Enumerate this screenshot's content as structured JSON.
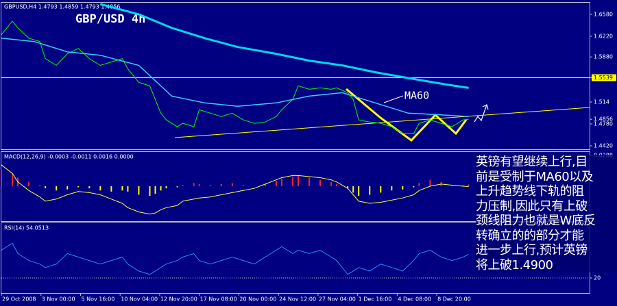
{
  "chart_data": [
    {
      "type": "line",
      "header": "GBPUSD,H4  1.4793 1.4859 1.4793 1.4856",
      "title": "GBP/USD 4h",
      "annotation": "MA60",
      "commentary": [
        "英镑有望继续上行,目",
        "前是受制于MA60以及",
        "上升趋势线下轨的阻",
        "力压制,因此只有上破",
        "颈线阻力也就是W底反",
        "转确立的的部分才能",
        "进一步上行,预计英镑",
        "将上破1.4900"
      ],
      "x": [
        0,
        2,
        3,
        5,
        7,
        8,
        10,
        12,
        14,
        16,
        18,
        20,
        22,
        23,
        25,
        27,
        28,
        29,
        30,
        32,
        33,
        35,
        36,
        38,
        40,
        42,
        44,
        46,
        48,
        50,
        51,
        53,
        54,
        56,
        58,
        60,
        61,
        63,
        64,
        65,
        67,
        69,
        71,
        73,
        75,
        76,
        78,
        80,
        82,
        84,
        85
      ],
      "series": [
        {
          "color": "#00ff00",
          "values": [
            1.6244,
            1.6468,
            1.6356,
            1.6188,
            1.6132,
            1.5853,
            1.5741,
            1.5931,
            1.602,
            1.5853,
            1.5741,
            1.5797,
            1.5853,
            1.5685,
            1.5461,
            1.5405,
            1.5181,
            1.4957,
            1.4846,
            1.4734,
            1.479,
            1.4734,
            1.5013,
            1.4957,
            1.4901,
            1.4957,
            1.4846,
            1.479,
            1.4812,
            1.4901,
            1.5013,
            1.5181,
            1.5405,
            1.5349,
            1.5371,
            1.5349,
            1.5371,
            1.5293,
            1.5181,
            1.4846,
            1.4812,
            1.479,
            1.4734,
            1.4622,
            1.4622,
            1.479,
            1.4846,
            1.479,
            1.4734,
            1.4846,
            1.4856
          ]
        },
        {
          "color": "#00d8f0",
          "width": 3,
          "x": [
            18,
            25,
            31,
            37,
            43,
            50,
            56,
            62,
            68,
            75,
            81,
            85
          ],
          "values": [
            1.6748,
            1.658,
            1.6356,
            1.6188,
            1.6043,
            1.5931,
            1.5819,
            1.5741,
            1.5629,
            1.5517,
            1.5427,
            1.5371
          ]
        },
        {
          "color": "#40c8ff",
          "width": 1.5,
          "x": [
            0,
            6,
            12,
            18,
            25,
            31,
            37,
            43,
            50,
            56,
            62,
            68,
            74,
            81,
            85
          ],
          "values": [
            1.6188,
            1.6132,
            1.5964,
            1.5908,
            1.5741,
            1.5237,
            1.5125,
            1.5069,
            1.5125,
            1.5237,
            1.5293,
            1.5125,
            1.4957,
            1.4924,
            1.4901
          ]
        }
      ],
      "xlim": [
        0,
        107
      ],
      "ylim": [
        1.4364,
        1.677
      ],
      "yticks": [
        {
          "value": 1.658,
          "label": "1.6580"
        },
        {
          "value": 1.622,
          "label": "1.6220"
        },
        {
          "value": 1.588,
          "label": "1.5880"
        },
        1.5539,
        1.514,
        1.4856,
        {
          "value": 1.478,
          "label": "1.4780"
        },
        {
          "value": 1.442,
          "label": "1.4420"
        }
      ],
      "level": {
        "value": 1.5539,
        "color": "#ffff00"
      }
    },
    {
      "type": "bar",
      "header": "MACD(12,26,9) -0.0003 -0.0011 0.0016 0.0000",
      "x": [
        0,
        2,
        3,
        5,
        7,
        8,
        10,
        12,
        14,
        16,
        18,
        20,
        22,
        23,
        25,
        27,
        28,
        29,
        30,
        32,
        33,
        35,
        36,
        38,
        40,
        42,
        44,
        46,
        48,
        50,
        51,
        53,
        54,
        56,
        58,
        60,
        61,
        63,
        64,
        65,
        67,
        69,
        71,
        73,
        75,
        76,
        78,
        80,
        82,
        84,
        85
      ],
      "series": [
        {
          "type": "bar",
          "up_color": "#ff2020",
          "down_color": "#ffff00",
          "values": [
            0.015,
            0.012,
            0.008,
            0.004,
            0.001,
            -0.002,
            -0.004,
            -0.003,
            -0.001,
            -0.002,
            -0.004,
            -0.005,
            -0.004,
            -0.005,
            -0.008,
            -0.009,
            -0.007,
            -0.004,
            -0.002,
            -0.001,
            0.001,
            0.003,
            0.002,
            0.001,
            0.002,
            0.003,
            0.001,
            0,
            0.002,
            0.005,
            0.007,
            0.009,
            0.01,
            0.008,
            0.006,
            0.004,
            0.002,
            -0.002,
            -0.006,
            -0.009,
            -0.008,
            -0.006,
            -0.004,
            -0.003,
            -0.001,
            0.003,
            0.006,
            0.004,
            0.001,
            0.001,
            0.0016
          ]
        },
        {
          "type": "line",
          "color": "#ffff40",
          "values": [
            0.02,
            0.012,
            0.004,
            -0.004,
            -0.01,
            -0.014,
            -0.012,
            -0.008,
            -0.005,
            -0.006,
            -0.008,
            -0.012,
            -0.016,
            -0.02,
            -0.024,
            -0.026,
            -0.025,
            -0.022,
            -0.02,
            -0.018,
            -0.014,
            -0.012,
            -0.011,
            -0.01,
            -0.008,
            -0.006,
            -0.004,
            -0.002,
            0.002,
            0.006,
            0.008,
            0.01,
            0.01,
            0.009,
            0.008,
            0.006,
            0.004,
            -0.002,
            -0.008,
            -0.014,
            -0.016,
            -0.015,
            -0.013,
            -0.011,
            -0.008,
            -0.004,
            0,
            0.002,
            0.001,
            0,
            -0.0003
          ]
        }
      ],
      "xlim": [
        0,
        107
      ],
      "ylim": [
        -0.0326,
        0.032
      ],
      "yticks": [
        0.0288
      ]
    },
    {
      "type": "line",
      "header": "RSI(14) 54.0513",
      "x": [
        0,
        2,
        3,
        5,
        7,
        8,
        10,
        12,
        14,
        16,
        18,
        20,
        22,
        23,
        25,
        27,
        28,
        29,
        30,
        32,
        33,
        35,
        36,
        38,
        40,
        42,
        44,
        46,
        48,
        50,
        51,
        53,
        54,
        56,
        58,
        60,
        61,
        63,
        64,
        65,
        67,
        69,
        71,
        73,
        75,
        76,
        78,
        80,
        82,
        84,
        85
      ],
      "series": [
        {
          "color": "#1e90ff",
          "values": [
            60,
            70,
            55,
            45,
            40,
            35,
            40,
            55,
            50,
            45,
            40,
            45,
            50,
            40,
            30,
            25,
            30,
            35,
            40,
            45,
            50,
            55,
            45,
            40,
            45,
            50,
            45,
            40,
            50,
            60,
            65,
            55,
            60,
            55,
            60,
            50,
            45,
            25,
            30,
            35,
            30,
            40,
            35,
            30,
            45,
            55,
            60,
            50,
            45,
            50,
            54.0513
          ]
        }
      ],
      "xlim": [
        0,
        107
      ],
      "ylim": [
        -1.6,
        98.7
      ],
      "yticks": [
        20
      ],
      "xticks": [
        {
          "value": 0,
          "label": "29 Oct 2008"
        },
        {
          "value": 7.2,
          "label": "3 Nov 00:00"
        },
        {
          "value": 14.4,
          "label": "5 Nov 16:00"
        },
        {
          "value": 21.6,
          "label": "10 Nov 04:00"
        },
        {
          "value": 28.8,
          "label": "12 Nov 20:00"
        },
        {
          "value": 36,
          "label": "17 Nov 08:00"
        },
        {
          "value": 43.2,
          "label": "20 Nov 00:00"
        },
        {
          "value": 50.4,
          "label": "24 Nov 12:00"
        },
        {
          "value": 57.6,
          "label": "27 Nov 04:00"
        },
        {
          "value": 64.8,
          "label": "1 Dec 16:00"
        },
        {
          "value": 72,
          "label": "4 Dec 08:00"
        },
        {
          "value": 79.2,
          "label": "8 Dec 20:00"
        }
      ]
    }
  ]
}
